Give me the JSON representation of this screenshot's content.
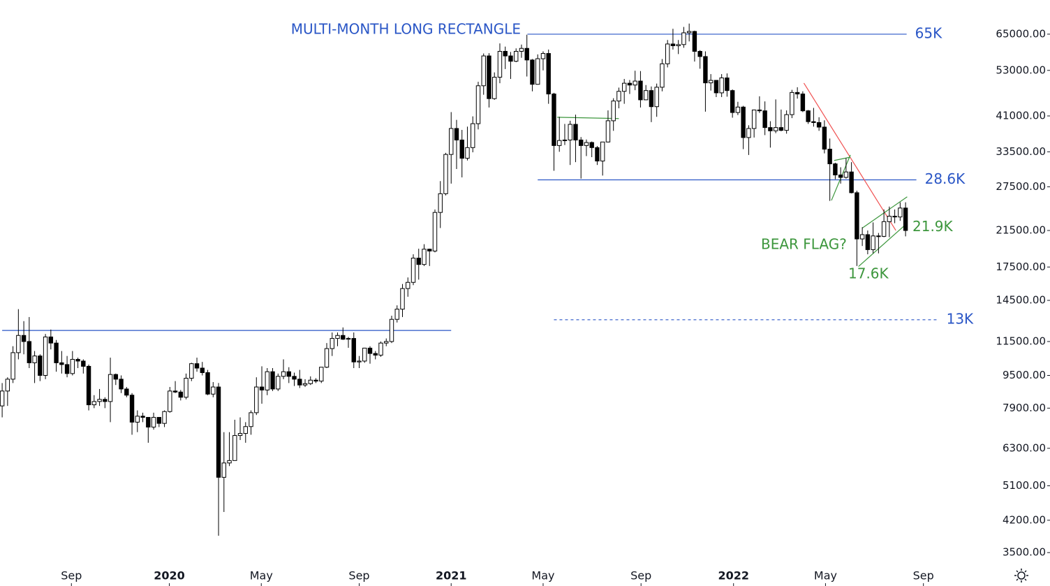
{
  "chart_data": {
    "type": "candlestick",
    "log_scale": true,
    "up_color": "#ffffff",
    "down_color": "#000000",
    "edge_color": "#000000",
    "open": [
      8000,
      8700,
      9300,
      10800,
      11900,
      11500,
      10200,
      10600,
      9500,
      11800,
      11400,
      10200,
      10100,
      9600,
      10400,
      10300,
      10000,
      8050,
      8200,
      8300,
      8200,
      9550,
      9300,
      8800,
      8500,
      7300,
      7550,
      7500,
      7100,
      7500,
      7250,
      7750,
      8700,
      8650,
      8400,
      9350,
      10150,
      9900,
      9650,
      8550,
      8900,
      5350,
      5800,
      5880,
      6770,
      6850,
      7120,
      7700,
      8900,
      8750,
      9700,
      8800,
      9450,
      9700,
      9450,
      9300,
      9000,
      9070,
      9250,
      9200,
      9950,
      11050,
      11700,
      11900,
      11650,
      11700,
      10250,
      10300,
      11080,
      10750,
      10650,
      11400,
      11500,
      13030,
      13800,
      15500,
      16050,
      18400,
      17750,
      19350,
      19150,
      23800,
      26450,
      33000,
      38200,
      35800,
      32300,
      34300,
      39250,
      48600,
      57500,
      45200,
      51000,
      59000,
      57500,
      55800,
      59000,
      60000,
      56200,
      49000,
      56600,
      58300,
      46400,
      34700,
      35700,
      35800,
      39100,
      35800,
      34700,
      35300,
      34300,
      31800,
      35400,
      39900,
      44600,
      47100,
      49300,
      48800,
      49900,
      44900,
      47300,
      43200,
      48200,
      55000,
      61500,
      60900,
      61300,
      65500,
      66000,
      59000,
      57300,
      49400,
      50100,
      46700,
      50800,
      47300,
      41800,
      43100,
      36300,
      38200,
      42400,
      42200,
      38400,
      37700,
      38400,
      37800,
      41300,
      46800,
      46400,
      42200,
      39700,
      39500,
      38500,
      34000,
      31300,
      29400,
      29000,
      29900,
      26600,
      20500,
      21000,
      19300,
      20850,
      20800,
      22600,
      23300,
      23200,
      24400
    ],
    "high": [
      9100,
      9400,
      11200,
      13800,
      12900,
      13200,
      10900,
      10700,
      12000,
      12300,
      11600,
      10900,
      10600,
      10900,
      10500,
      10400,
      10100,
      8500,
      8800,
      8400,
      10500,
      9600,
      9500,
      8900,
      8600,
      7800,
      7700,
      7500,
      7700,
      7500,
      7800,
      8900,
      9200,
      8750,
      9600,
      10200,
      10500,
      10250,
      9800,
      9150,
      9100,
      6900,
      6900,
      7400,
      7500,
      7300,
      7800,
      9400,
      10000,
      9900,
      9900,
      9600,
      10400,
      9950,
      9650,
      9800,
      9300,
      9450,
      9350,
      9950,
      11400,
      12100,
      12100,
      12450,
      11800,
      12100,
      10600,
      11100,
      11200,
      10900,
      11500,
      11700,
      13300,
      14100,
      15900,
      16500,
      18800,
      19400,
      19900,
      19400,
      24200,
      28400,
      33300,
      41900,
      40100,
      37900,
      38600,
      40900,
      49700,
      58300,
      58400,
      52400,
      61700,
      60600,
      58800,
      60000,
      61300,
      64800,
      56500,
      58000,
      59000,
      59600,
      46700,
      40800,
      39200,
      39900,
      41300,
      36400,
      35900,
      35500,
      34600,
      35400,
      42300,
      45300,
      48100,
      50500,
      50200,
      52900,
      52800,
      48800,
      48400,
      49200,
      56500,
      62900,
      67000,
      62900,
      67700,
      69000,
      66300,
      59400,
      59000,
      51900,
      50200,
      51900,
      52100,
      47600,
      44400,
      43400,
      38900,
      42500,
      45800,
      44500,
      39800,
      45000,
      42500,
      42300,
      47500,
      48200,
      47100,
      42400,
      42900,
      40700,
      40000,
      36100,
      31500,
      30700,
      32300,
      31600,
      26900,
      21900,
      21500,
      22500,
      21200,
      24200,
      24600,
      24200,
      25200,
      25200
    ],
    "low": [
      7500,
      8000,
      9100,
      10400,
      10700,
      9900,
      9100,
      9200,
      9300,
      11000,
      9700,
      9600,
      9400,
      9500,
      9900,
      9600,
      7800,
      7900,
      8000,
      7900,
      7300,
      9000,
      8600,
      8400,
      6800,
      6900,
      7300,
      6500,
      7000,
      7100,
      7100,
      7700,
      8600,
      8250,
      8300,
      9200,
      9700,
      9500,
      8500,
      8400,
      3850,
      4400,
      5700,
      5900,
      6600,
      6500,
      6800,
      7600,
      8100,
      8500,
      8700,
      8700,
      9300,
      9100,
      8950,
      8850,
      8900,
      9000,
      9100,
      9100,
      9900,
      10600,
      11200,
      11600,
      11100,
      9900,
      9900,
      10200,
      10150,
      10400,
      10550,
      11200,
      11400,
      12800,
      13200,
      14800,
      15800,
      16300,
      17600,
      17600,
      19000,
      21800,
      26200,
      28000,
      30400,
      29000,
      31900,
      33400,
      38000,
      46200,
      43000,
      44900,
      49300,
      53400,
      50500,
      55500,
      56900,
      51200,
      47100,
      48900,
      53000,
      43900,
      30100,
      33500,
      34800,
      31100,
      31600,
      28800,
      32700,
      32500,
      31100,
      29300,
      35300,
      37700,
      42800,
      43900,
      46400,
      47400,
      43000,
      44800,
      39600,
      40800,
      47100,
      53900,
      59600,
      58100,
      60200,
      62400,
      55700,
      53500,
      42000,
      47300,
      45600,
      45600,
      45700,
      40600,
      41200,
      34000,
      32900,
      36300,
      41700,
      36800,
      34300,
      37200,
      37600,
      37100,
      40500,
      45200,
      41900,
      39200,
      38600,
      37700,
      33200,
      25400,
      28700,
      28000,
      28800,
      26500,
      17600,
      19700,
      18800,
      18900,
      18900,
      20700,
      20700,
      22400,
      22700,
      20800
    ],
    "close": [
      8700,
      9300,
      10800,
      11900,
      11500,
      10200,
      10600,
      9500,
      11800,
      11400,
      10200,
      10100,
      9600,
      10400,
      10300,
      10000,
      8050,
      8200,
      8300,
      8200,
      9550,
      9300,
      8800,
      8500,
      7300,
      7550,
      7500,
      7100,
      7500,
      7250,
      7750,
      8700,
      8650,
      8400,
      9350,
      10150,
      9900,
      9650,
      8550,
      8900,
      5350,
      5800,
      5880,
      6770,
      6850,
      7120,
      7700,
      8900,
      8750,
      9700,
      8800,
      9450,
      9700,
      9450,
      9300,
      9000,
      9070,
      9250,
      9200,
      9950,
      11050,
      11700,
      11900,
      11650,
      11700,
      10250,
      10300,
      11080,
      10750,
      10650,
      11400,
      11500,
      13030,
      13800,
      15500,
      16050,
      18400,
      17750,
      19350,
      19150,
      23800,
      26450,
      33000,
      38200,
      35800,
      32300,
      34300,
      39250,
      48600,
      57500,
      45200,
      51000,
      59000,
      57500,
      55800,
      59000,
      60000,
      56200,
      49000,
      56600,
      58300,
      46400,
      34700,
      35700,
      35800,
      39100,
      35800,
      34700,
      35300,
      34300,
      31800,
      35400,
      39900,
      44600,
      47100,
      49300,
      48800,
      49900,
      44900,
      47300,
      43200,
      48200,
      55000,
      61500,
      60900,
      61300,
      65500,
      66000,
      59000,
      57300,
      49400,
      50100,
      46700,
      50800,
      47300,
      41800,
      43100,
      36300,
      38200,
      42400,
      42200,
      38400,
      37700,
      38400,
      37800,
      41300,
      46800,
      46400,
      42200,
      39700,
      39500,
      38500,
      34000,
      31300,
      29400,
      29000,
      29900,
      26600,
      20500,
      21000,
      19300,
      20850,
      20800,
      22600,
      23300,
      23200,
      24400,
      21500
    ],
    "xlim": [
      -0.4,
      193.7
    ],
    "xticks": [
      {
        "value": 12.8,
        "label": "Sep"
      },
      {
        "value": 30.9,
        "label": "2020"
      },
      {
        "value": 47.9,
        "label": "May"
      },
      {
        "value": 66.0,
        "label": "Sep"
      },
      {
        "value": 83.0,
        "label": "2021"
      },
      {
        "value": 100.0,
        "label": "May"
      },
      {
        "value": 118.1,
        "label": "Sep"
      },
      {
        "value": 135.2,
        "label": "2022"
      },
      {
        "value": 152.2,
        "label": "May"
      },
      {
        "value": 170.3,
        "label": "Sep"
      }
    ],
    "ylim": [
      3250,
      78800
    ],
    "yticks": [
      {
        "value": 3500,
        "label": "3500.00"
      },
      {
        "value": 4200,
        "label": "4200.00"
      },
      {
        "value": 5100,
        "label": "5100.00"
      },
      {
        "value": 6300,
        "label": "6300.00"
      },
      {
        "value": 7900,
        "label": "7900.00"
      },
      {
        "value": 9500,
        "label": "9500.00"
      },
      {
        "value": 11500,
        "label": "11500.00"
      },
      {
        "value": 14500,
        "label": "14500.00"
      },
      {
        "value": 17500,
        "label": "17500.00"
      },
      {
        "value": 21500,
        "label": "21500.00"
      },
      {
        "value": 27500,
        "label": "27500.00"
      },
      {
        "value": 33500,
        "label": "33500.00"
      },
      {
        "value": 41000,
        "label": "41000.00"
      },
      {
        "value": 53000,
        "label": "53000.00"
      },
      {
        "value": 65000,
        "label": "65000.00"
      }
    ],
    "levels": [
      {
        "value": 65000,
        "label": "65K",
        "x": [
          97.1,
          167.2
        ],
        "color": "#2a56c6"
      },
      {
        "value": 28600,
        "label": "28.6K",
        "x": [
          99.0,
          169.0
        ],
        "color": "#2a56c6"
      },
      {
        "value": 12240,
        "x": [
          0,
          83.0
        ],
        "color": "#2a56c6"
      },
      {
        "value": 13000,
        "label": "13K",
        "x": [
          102.0,
          173.0
        ],
        "color": "#2a56c6",
        "dashed": true
      }
    ],
    "price_labels": [
      {
        "text": "21.9K",
        "value": 21900,
        "color": "#3c963c"
      },
      {
        "text": "17.6K",
        "value": 17600,
        "color": "#3c963c"
      }
    ],
    "trendlines": [
      {
        "color": "#f05050",
        "points": [
          [
            148.2,
            49350
          ],
          [
            165.2,
            21500
          ]
        ]
      },
      {
        "color": "#3c963c",
        "points": [
          [
            158.3,
            17550
          ],
          [
            167.3,
            22400
          ]
        ]
      },
      {
        "color": "#3c963c",
        "points": [
          [
            159.0,
            21800
          ],
          [
            167.3,
            26000
          ]
        ]
      },
      {
        "color": "#3c963c",
        "points": [
          [
            153.3,
            25470
          ],
          [
            156.8,
            32900
          ]
        ]
      },
      {
        "color": "#3c963c",
        "points": [
          [
            153.8,
            31900
          ],
          [
            156.8,
            32500
          ]
        ]
      },
      {
        "color": "#3c963c",
        "points": [
          [
            102.6,
            40700
          ],
          [
            114.0,
            40400
          ]
        ]
      }
    ],
    "annotations": [
      "MULTI-MONTH LONG RECTANGLE",
      "BEAR FLAG?"
    ]
  }
}
